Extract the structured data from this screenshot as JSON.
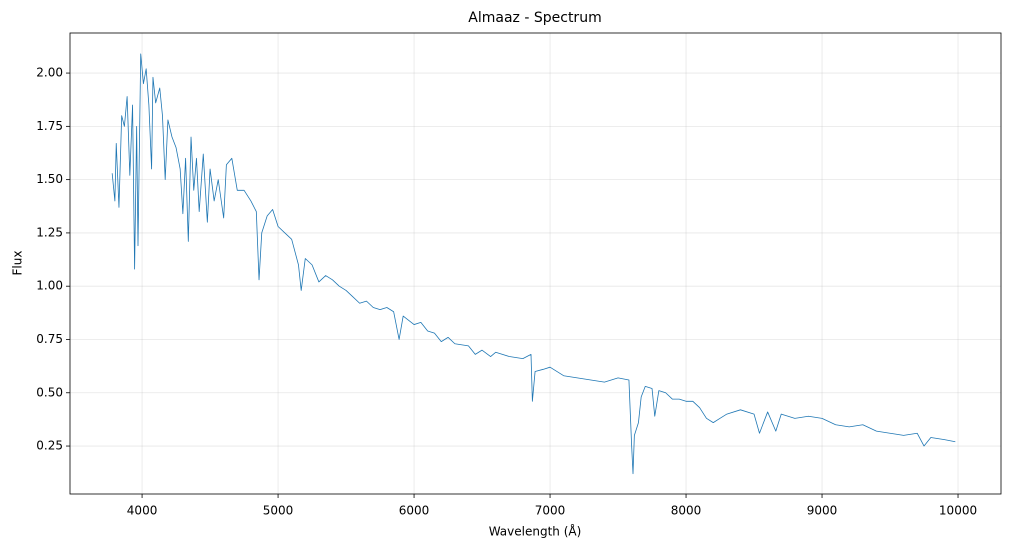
{
  "chart_data": {
    "type": "line",
    "title": "Almaaz - Spectrum",
    "xlabel": "Wavelength (Å)",
    "ylabel": "Flux",
    "x": [
      3780,
      3800,
      3810,
      3830,
      3850,
      3870,
      3890,
      3910,
      3930,
      3945,
      3960,
      3970,
      3990,
      4010,
      4030,
      4050,
      4070,
      4080,
      4100,
      4130,
      4150,
      4170,
      4190,
      4220,
      4250,
      4280,
      4300,
      4320,
      4340,
      4360,
      4380,
      4400,
      4420,
      4450,
      4480,
      4500,
      4530,
      4560,
      4600,
      4620,
      4660,
      4700,
      4750,
      4800,
      4840,
      4860,
      4880,
      4920,
      4960,
      5000,
      5050,
      5100,
      5150,
      5170,
      5200,
      5250,
      5300,
      5350,
      5400,
      5450,
      5500,
      5550,
      5600,
      5650,
      5700,
      5750,
      5800,
      5850,
      5890,
      5920,
      6000,
      6050,
      6100,
      6150,
      6200,
      6250,
      6300,
      6400,
      6450,
      6500,
      6563,
      6600,
      6700,
      6800,
      6860,
      6870,
      6890,
      6950,
      7000,
      7050,
      7100,
      7200,
      7300,
      7400,
      7500,
      7580,
      7600,
      7610,
      7620,
      7650,
      7670,
      7700,
      7750,
      7770,
      7800,
      7850,
      7900,
      7950,
      8000,
      8050,
      8100,
      8150,
      8200,
      8250,
      8300,
      8400,
      8500,
      8540,
      8600,
      8660,
      8700,
      8800,
      8900,
      9000,
      9100,
      9200,
      9300,
      9400,
      9500,
      9600,
      9700,
      9750,
      9800,
      9900,
      9980
    ],
    "series": [
      {
        "name": "Flux",
        "color": "#1f77b4",
        "values": [
          1.53,
          1.4,
          1.67,
          1.37,
          1.8,
          1.75,
          1.89,
          1.52,
          1.85,
          1.08,
          1.75,
          1.19,
          2.09,
          1.95,
          2.02,
          1.85,
          1.55,
          1.98,
          1.86,
          1.93,
          1.8,
          1.5,
          1.78,
          1.7,
          1.65,
          1.55,
          1.34,
          1.6,
          1.21,
          1.7,
          1.45,
          1.6,
          1.35,
          1.62,
          1.3,
          1.55,
          1.4,
          1.5,
          1.32,
          1.57,
          1.6,
          1.45,
          1.45,
          1.4,
          1.35,
          1.03,
          1.25,
          1.33,
          1.36,
          1.28,
          1.25,
          1.22,
          1.1,
          0.98,
          1.13,
          1.1,
          1.02,
          1.05,
          1.03,
          1.0,
          0.98,
          0.95,
          0.92,
          0.93,
          0.9,
          0.89,
          0.9,
          0.88,
          0.75,
          0.86,
          0.82,
          0.83,
          0.79,
          0.78,
          0.74,
          0.76,
          0.73,
          0.72,
          0.68,
          0.7,
          0.67,
          0.69,
          0.67,
          0.66,
          0.68,
          0.46,
          0.6,
          0.61,
          0.62,
          0.6,
          0.58,
          0.57,
          0.56,
          0.55,
          0.57,
          0.56,
          0.25,
          0.12,
          0.3,
          0.36,
          0.48,
          0.53,
          0.52,
          0.39,
          0.51,
          0.5,
          0.47,
          0.47,
          0.46,
          0.46,
          0.43,
          0.38,
          0.36,
          0.38,
          0.4,
          0.42,
          0.4,
          0.31,
          0.41,
          0.32,
          0.4,
          0.38,
          0.39,
          0.38,
          0.35,
          0.34,
          0.35,
          0.32,
          0.31,
          0.3,
          0.31,
          0.25,
          0.29,
          0.28,
          0.27
        ]
      }
    ],
    "xlim": [
      3470,
      10316
    ],
    "ylim": [
      0.025,
      2.188
    ],
    "xticks": [
      4000,
      5000,
      6000,
      7000,
      8000,
      9000,
      10000
    ],
    "yticks": [
      0.25,
      {
        "value": 0.5,
        "label": "0.50"
      },
      0.75,
      {
        "value": 1,
        "label": "1.00"
      },
      1.25,
      {
        "value": 1.5,
        "label": "1.50"
      },
      1.75,
      {
        "value": 2,
        "label": "2.00"
      }
    ],
    "grid": true
  }
}
